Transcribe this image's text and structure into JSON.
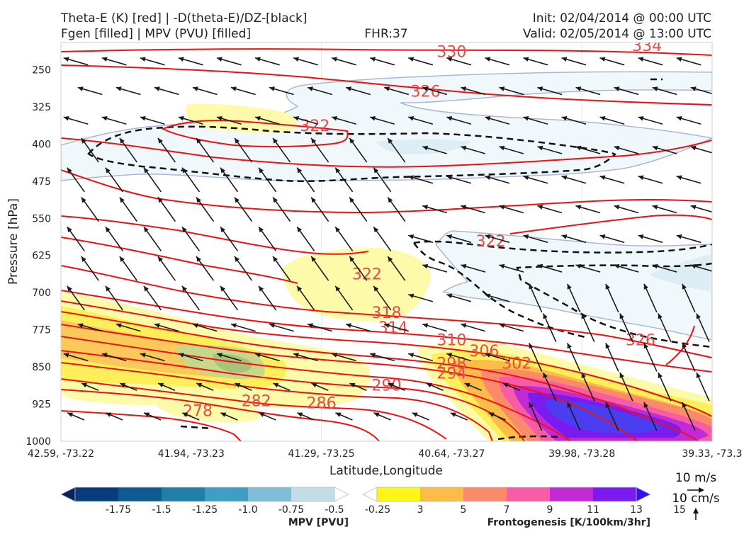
{
  "header": {
    "title_line1": "Theta-E (K) [red] | -D(theta-E)/DZ-[black]",
    "title_line2": "Fgen [filled] | MPV (PVU) [filled]",
    "fhr": "FHR:37",
    "init": "Init: 02/04/2014 @ 00:00 UTC",
    "valid": "Valid: 02/05/2014 @ 13:00 UTC"
  },
  "chart_data": {
    "type": "cross-section",
    "xlabel": "Latitude,Longitude",
    "ylabel": "Pressure [hPa]",
    "x_ticks": [
      "42.59, -73.22",
      "41.94, -73.23",
      "41.29, -73.25",
      "40.64, -73.27",
      "39.98, -73.28",
      "39.33, -73.3"
    ],
    "y_ticks": [
      250,
      325,
      400,
      475,
      550,
      625,
      700,
      775,
      850,
      925,
      1000
    ],
    "ylim": [
      1000,
      195
    ],
    "y_inverted": true,
    "theta_e_labels": [
      {
        "value": "278",
        "dist": 0.21,
        "p": 938
      },
      {
        "value": "282",
        "dist": 0.3,
        "p": 918
      },
      {
        "value": "286",
        "dist": 0.4,
        "p": 922
      },
      {
        "value": "290",
        "dist": 0.5,
        "p": 886
      },
      {
        "value": "294",
        "dist": 0.6,
        "p": 862
      },
      {
        "value": "298",
        "dist": 0.6,
        "p": 842
      },
      {
        "value": "302",
        "dist": 0.7,
        "p": 842
      },
      {
        "value": "306",
        "dist": 0.65,
        "p": 817
      },
      {
        "value": "310",
        "dist": 0.6,
        "p": 795
      },
      {
        "value": "314",
        "dist": 0.51,
        "p": 770
      },
      {
        "value": "318",
        "dist": 0.5,
        "p": 740
      },
      {
        "value": "322",
        "dist": 0.39,
        "p": 362
      },
      {
        "value": "322",
        "dist": 0.47,
        "p": 662
      },
      {
        "value": "322",
        "dist": 0.66,
        "p": 595
      },
      {
        "value": "326",
        "dist": 0.56,
        "p": 293
      },
      {
        "value": "326",
        "dist": 0.89,
        "p": 795
      },
      {
        "value": "330",
        "dist": 0.6,
        "p": 213
      },
      {
        "value": "334",
        "dist": 0.9,
        "p": 201
      }
    ],
    "wind_reference": {
      "horizontal": "10 m/s",
      "vertical": "10 cm/s"
    },
    "colorbars": [
      {
        "name": "MPV [PVU]",
        "ticks": [
          "-1.75",
          "-1.5",
          "-1.25",
          "-1.0",
          "-0.75",
          "-0.5",
          "-0.25"
        ],
        "colors": [
          "#08235e",
          "#083c7a",
          "#0f5a8f",
          "#1f7fa8",
          "#3f9ec4",
          "#7fbcd6",
          "#c2dde8",
          "#ffffff"
        ]
      },
      {
        "name": "Frontogenesis [K/100km/3hr]",
        "ticks": [
          "3",
          "5",
          "7",
          "9",
          "11",
          "13",
          "15"
        ],
        "colors": [
          "#ffffff",
          "#fcf515",
          "#fbbd48",
          "#fb8a6a",
          "#f95ca6",
          "#c22ad6",
          "#7a1cf0",
          "#3a0ef5"
        ]
      }
    ]
  }
}
